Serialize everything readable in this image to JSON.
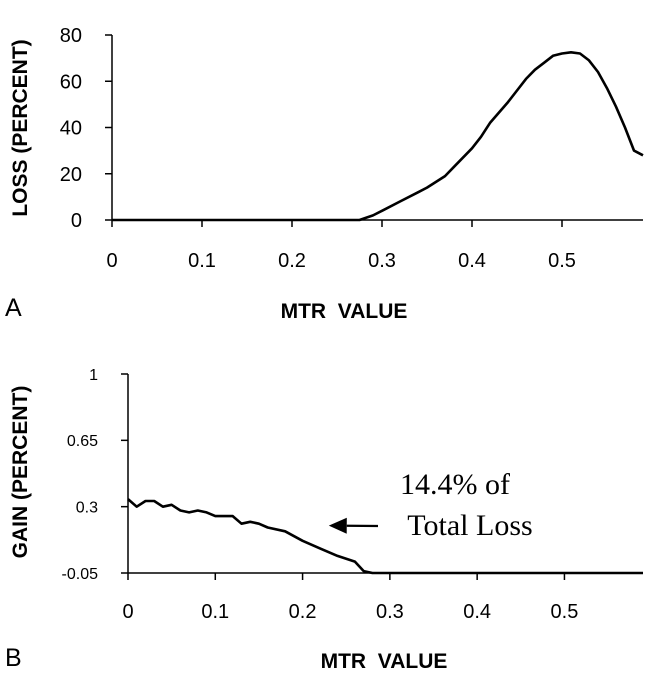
{
  "chart_data": [
    {
      "type": "line",
      "panel_label": "A",
      "title": "",
      "xlabel": "MTR  VALUE",
      "ylabel": "LOSS (PERCENT)",
      "xlim": [
        0,
        0.59
      ],
      "ylim": [
        0,
        80
      ],
      "x_ticks": [
        0,
        0.1,
        0.2,
        0.3,
        0.4,
        0.5
      ],
      "x_tick_labels": [
        "0",
        "0.1",
        "0.2",
        "0.3",
        "0.4",
        "0.5"
      ],
      "y_ticks": [
        0,
        20,
        40,
        60,
        80
      ],
      "y_tick_labels": [
        "0",
        "20",
        "40",
        "60",
        "80"
      ],
      "grid": false,
      "series": [
        {
          "name": "Loss",
          "x": [
            0.275,
            0.29,
            0.3,
            0.32,
            0.34,
            0.35,
            0.37,
            0.38,
            0.4,
            0.41,
            0.42,
            0.44,
            0.45,
            0.46,
            0.47,
            0.48,
            0.49,
            0.5,
            0.51,
            0.52,
            0.53,
            0.54,
            0.55,
            0.56,
            0.57,
            0.58,
            0.59
          ],
          "values": [
            0,
            2,
            4,
            8,
            12,
            14,
            19,
            23,
            31,
            36,
            42,
            51,
            56,
            61,
            65,
            68,
            71,
            72,
            72.5,
            72,
            69,
            64,
            57,
            49,
            40,
            30,
            28
          ]
        }
      ]
    },
    {
      "type": "line",
      "panel_label": "B",
      "title": "",
      "xlabel": "MTR  VALUE",
      "ylabel": "GAIN (PERCENT)",
      "xlim": [
        0,
        0.59
      ],
      "ylim": [
        -0.05,
        1
      ],
      "x_ticks": [
        0,
        0.1,
        0.2,
        0.3,
        0.4,
        0.5
      ],
      "x_tick_labels": [
        "0",
        "0.1",
        "0.2",
        "0.3",
        "0.4",
        "0.5"
      ],
      "y_ticks": [
        -0.05,
        0.3,
        0.65,
        1
      ],
      "y_tick_labels": [
        "-0.05",
        "0.3",
        "0.65",
        "1"
      ],
      "grid": false,
      "series": [
        {
          "name": "Gain",
          "x": [
            0,
            0.01,
            0.02,
            0.03,
            0.04,
            0.05,
            0.06,
            0.07,
            0.08,
            0.09,
            0.1,
            0.11,
            0.12,
            0.13,
            0.14,
            0.15,
            0.16,
            0.18,
            0.2,
            0.22,
            0.24,
            0.26,
            0.27,
            0.28,
            0.3,
            0.4,
            0.5,
            0.59
          ],
          "values": [
            0.34,
            0.3,
            0.33,
            0.33,
            0.3,
            0.31,
            0.28,
            0.27,
            0.28,
            0.27,
            0.25,
            0.25,
            0.25,
            0.21,
            0.22,
            0.21,
            0.19,
            0.17,
            0.12,
            0.08,
            0.04,
            0.01,
            -0.04,
            -0.05,
            -0.05,
            -0.05,
            -0.05,
            -0.05
          ]
        }
      ],
      "annotations": [
        {
          "text_line1": "14.4% of",
          "text_line2": "Total Loss",
          "arrow_to_x": 0.23,
          "arrow_to_y": 0.2
        }
      ]
    }
  ]
}
